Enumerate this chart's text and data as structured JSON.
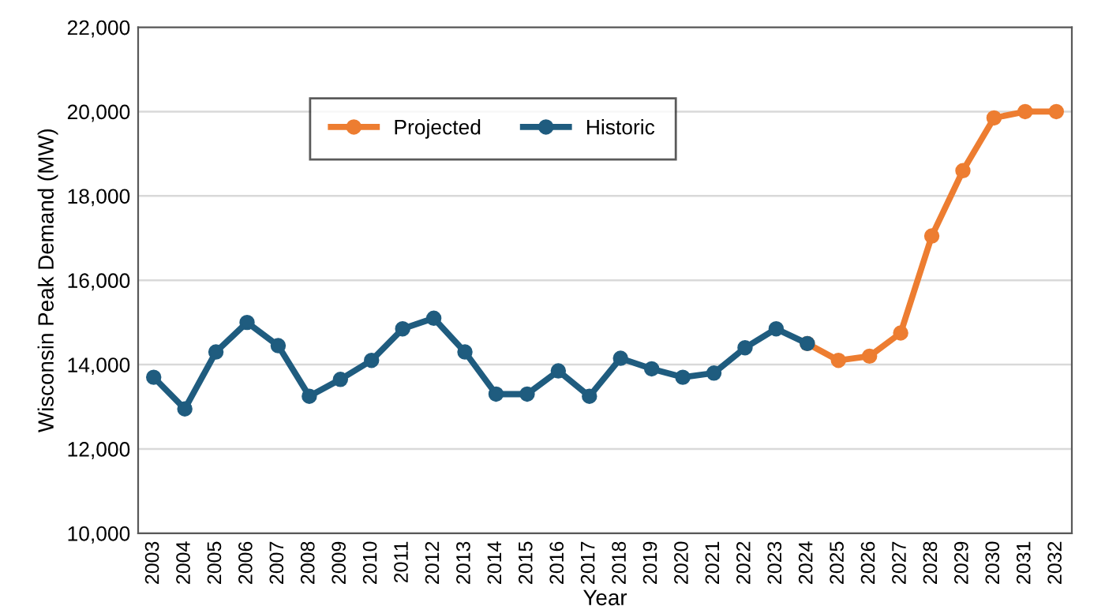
{
  "chart_data": {
    "type": "line",
    "xlabel": "Year",
    "ylabel": "Wisconsin Peak Demand (MW)",
    "categories": [
      "2003",
      "2004",
      "2005",
      "2006",
      "2007",
      "2008",
      "2009",
      "2010",
      "2011",
      "2012",
      "2013",
      "2014",
      "2015",
      "2016",
      "2017",
      "2018",
      "2019",
      "2020",
      "2021",
      "2022",
      "2023",
      "2024",
      "2025",
      "2026",
      "2027",
      "2028",
      "2029",
      "2030",
      "2031",
      "2032"
    ],
    "series": [
      {
        "name": "Projected",
        "color": "#ed7d31",
        "values": [
          null,
          null,
          null,
          null,
          null,
          null,
          null,
          null,
          null,
          null,
          null,
          null,
          null,
          null,
          null,
          null,
          null,
          null,
          null,
          null,
          null,
          14500,
          14100,
          14200,
          14750,
          17050,
          18600,
          19850,
          20000,
          20000
        ]
      },
      {
        "name": "Historic",
        "color": "#1f5c7f",
        "values": [
          13700,
          12950,
          14300,
          15000,
          14450,
          13250,
          13650,
          14100,
          14850,
          15100,
          14300,
          13300,
          13300,
          13850,
          13250,
          14150,
          13900,
          13700,
          13800,
          14400,
          14850,
          14500,
          null,
          null,
          null,
          null,
          null,
          null,
          null,
          null
        ]
      }
    ],
    "ylim": [
      10000,
      22000
    ],
    "yticks": [
      {
        "value": 10000,
        "label": "10,000"
      },
      {
        "value": 12000,
        "label": "12,000"
      },
      {
        "value": 14000,
        "label": "14,000"
      },
      {
        "value": 16000,
        "label": "16,000"
      },
      {
        "value": 18000,
        "label": "18,000"
      },
      {
        "value": 20000,
        "label": "20,000"
      },
      {
        "value": 22000,
        "label": "22,000"
      }
    ],
    "grid": "y",
    "legend": "top",
    "marker": "circle",
    "line_style": "solid"
  }
}
